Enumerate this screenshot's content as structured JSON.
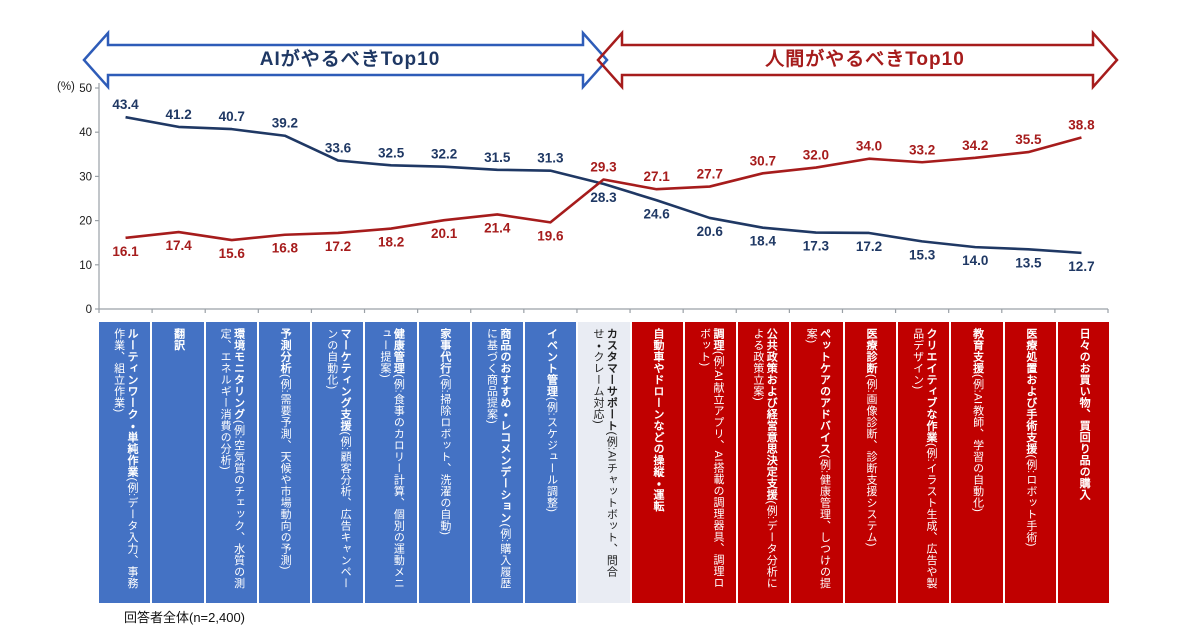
{
  "header": {
    "ai_arrow_label": "AIがやるべきTop10",
    "human_arrow_label": "人間がやるべきTop10"
  },
  "chart_data": {
    "type": "line",
    "unit_label": "(%)",
    "ylim": [
      0,
      50
    ],
    "yticks": [
      0,
      10,
      20,
      30,
      40,
      50
    ],
    "grid": false,
    "legend": "none",
    "categories": [
      {
        "title": "ルーティンワーク・単純作業",
        "desc": "(例:データ入力、事務作業、組立作業)",
        "group": "ai"
      },
      {
        "title": "翻訳",
        "desc": "",
        "group": "ai"
      },
      {
        "title": "環境モニタリング",
        "desc": "(例:空気質のチェック、水質の測定、エネルギー消費の分析)",
        "group": "ai"
      },
      {
        "title": "予測分析",
        "desc": "(例:需要予測、天候や市場動向の予測)",
        "group": "ai"
      },
      {
        "title": "マーケティング支援",
        "desc": "(例:顧客分析、広告キャンペーンの自動化)",
        "group": "ai"
      },
      {
        "title": "健康管理",
        "desc": "(例:食事のカロリー計算、個別の運動メニュー提案)",
        "group": "ai"
      },
      {
        "title": "家事代行",
        "desc": "(例:掃除ロボット、洗濯の自動)",
        "group": "ai"
      },
      {
        "title": "商品のおすすめ・レコメンデーション",
        "desc": "(例:購入履歴に基づく商品提案)",
        "group": "ai"
      },
      {
        "title": "イベント管理",
        "desc": "(例:スケジュール調整)",
        "group": "ai"
      },
      {
        "title": "カスタマーサポート",
        "desc": "(例:AIチャットボット、問合せ・クレーム対応)",
        "group": "neutral"
      },
      {
        "title": "自動車やドローンなどの操縦・運転",
        "desc": "",
        "group": "human"
      },
      {
        "title": "調理",
        "desc": "(例:AI献立アプリ、AI搭載の調理器具、調理ロボット)",
        "group": "human"
      },
      {
        "title": "公共政策および経営意思決定支援",
        "desc": "(例:データ分析による政策立案)",
        "group": "human"
      },
      {
        "title": "ペットケアのアドバイス",
        "desc": "(例:健康管理、しつけの提案)",
        "group": "human"
      },
      {
        "title": "医療診断",
        "desc": "(例:画像診断、診断支援システム)",
        "group": "human"
      },
      {
        "title": "クリエイティブな作業",
        "desc": "(例:イラスト生成、広告や製品デザイン)",
        "group": "human"
      },
      {
        "title": "教育支援",
        "desc": "(例:AI教師、学習の自動化)",
        "group": "human"
      },
      {
        "title": "医療処置および手術支援",
        "desc": "(例:ロボット手術)",
        "group": "human"
      },
      {
        "title": "日々のお買い物、買回り品の購入",
        "desc": "",
        "group": "human"
      }
    ],
    "series": [
      {
        "name": "AIがやるべき",
        "color": "#1f3864",
        "values": [
          43.4,
          41.2,
          40.7,
          39.2,
          33.6,
          32.5,
          32.2,
          31.5,
          31.3,
          28.3,
          24.6,
          20.6,
          18.4,
          17.3,
          17.2,
          15.3,
          14.0,
          13.5,
          12.7
        ]
      },
      {
        "name": "人間がやるべき",
        "color": "#a61c1c",
        "values": [
          16.1,
          17.4,
          15.6,
          16.8,
          17.2,
          18.2,
          20.1,
          21.4,
          19.6,
          29.3,
          27.1,
          27.7,
          30.7,
          32.0,
          34.0,
          33.2,
          34.2,
          35.5,
          38.8
        ]
      }
    ]
  },
  "colors": {
    "ai_box": "#4472c4",
    "human_box": "#c00000",
    "neutral_box": "#e9ecf3",
    "box_text": "#ffffff",
    "neutral_text": "#1f1f1f",
    "ai_arrow": "#2e5cb8",
    "human_arrow": "#a61c1c",
    "axis": "#9aa0a6",
    "tick_text": "#1a1a1a"
  },
  "footer": {
    "caption": "回答者全体(n=2,400)"
  }
}
